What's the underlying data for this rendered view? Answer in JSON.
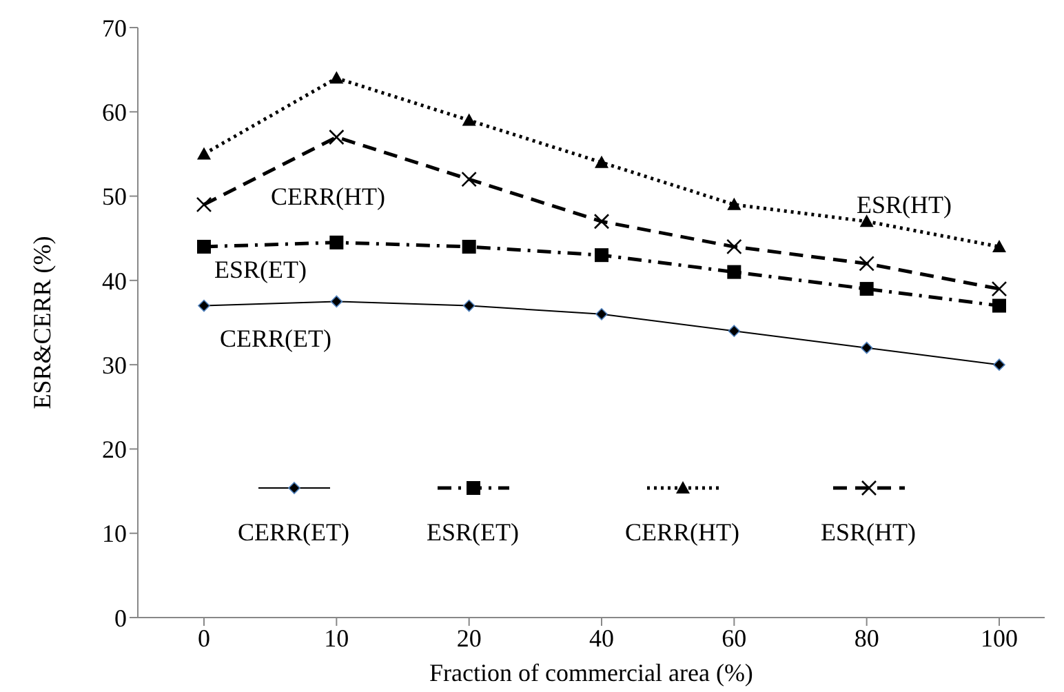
{
  "chart_data": {
    "type": "line",
    "xlabel": "Fraction of commercial area (%)",
    "ylabel": "ESR&CERR (%)",
    "categories": [
      "0",
      "10",
      "20",
      "40",
      "60",
      "80",
      "100"
    ],
    "series": [
      {
        "name": "CERR(ET)",
        "color": "#000000",
        "marker": "diamond",
        "line_style": "solid",
        "values": [
          37,
          37.5,
          37,
          36,
          34,
          32,
          30
        ]
      },
      {
        "name": "ESR(ET)",
        "color": "#000000",
        "marker": "square",
        "line_style": "dashdot",
        "values": [
          44,
          44.5,
          44,
          43,
          41,
          39,
          37
        ]
      },
      {
        "name": "CERR(HT)",
        "color": "#000000",
        "marker": "triangle",
        "line_style": "dotted",
        "values": [
          55,
          64,
          59,
          54,
          49,
          47,
          44
        ]
      },
      {
        "name": "ESR(HT)",
        "color": "#000000",
        "marker": "cross",
        "line_style": "dashed",
        "values": [
          49,
          57,
          52,
          47,
          44,
          42,
          39
        ]
      }
    ],
    "ylim": [
      0,
      70
    ],
    "yticks": [
      0,
      10,
      20,
      30,
      40,
      50,
      60,
      70
    ],
    "grid": false,
    "legend": "bottom",
    "annotations": [
      "CERR(HT)",
      "ESR(HT)",
      "ESR(ET)",
      "CERR(ET)"
    ]
  }
}
